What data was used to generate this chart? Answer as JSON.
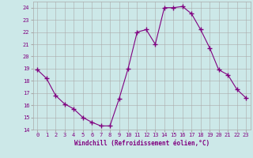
{
  "x": [
    0,
    1,
    2,
    3,
    4,
    5,
    6,
    7,
    8,
    9,
    10,
    11,
    12,
    13,
    14,
    15,
    16,
    17,
    18,
    19,
    20,
    21,
    22,
    23
  ],
  "y": [
    18.9,
    18.2,
    16.8,
    16.1,
    15.7,
    15.0,
    14.6,
    14.3,
    14.3,
    16.5,
    19.0,
    22.0,
    22.2,
    21.0,
    24.0,
    24.0,
    24.1,
    23.5,
    22.2,
    20.7,
    18.9,
    18.5,
    17.3,
    16.6
  ],
  "line_color": "#800080",
  "marker": "+",
  "marker_size": 4,
  "bg_color": "#cce8e8",
  "grid_color": "#aaaaaa",
  "xlabel": "Windchill (Refroidissement éolien,°C)",
  "xlabel_color": "#800080",
  "tick_color": "#800080",
  "ylim": [
    14,
    24.5
  ],
  "yticks": [
    14,
    15,
    16,
    17,
    18,
    19,
    20,
    21,
    22,
    23,
    24
  ],
  "xlim": [
    -0.5,
    23.5
  ],
  "xticks": [
    0,
    1,
    2,
    3,
    4,
    5,
    6,
    7,
    8,
    9,
    10,
    11,
    12,
    13,
    14,
    15,
    16,
    17,
    18,
    19,
    20,
    21,
    22,
    23
  ]
}
